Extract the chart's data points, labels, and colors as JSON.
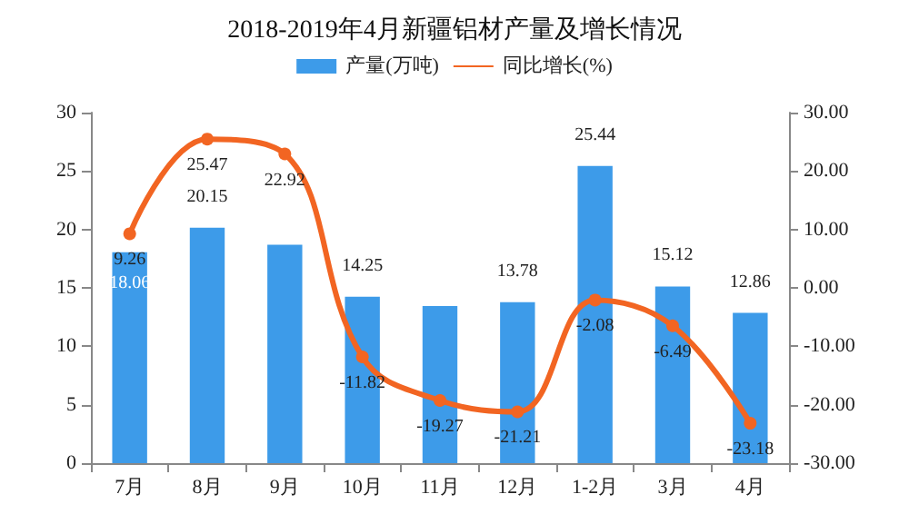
{
  "chart_data": {
    "type": "bar",
    "title": "2018-2019年4月新疆铝材产量及增长情况",
    "categories": [
      "7月",
      "8月",
      "9月",
      "10月",
      "11月",
      "12月",
      "1-2月",
      "3月",
      "4月"
    ],
    "series": [
      {
        "name": "产量(万吨)",
        "color": "#3d9be9",
        "values": [
          18.06,
          20.15,
          18.7,
          14.25,
          13.45,
          13.78,
          25.44,
          15.12,
          12.86
        ],
        "value_labels": [
          "18.06",
          "20.15",
          null,
          "14.25",
          null,
          "13.78",
          "25.44",
          "15.12",
          "12.86"
        ]
      },
      {
        "name": "同比增长(%)",
        "type": "line",
        "axis": "y2",
        "color": "#f26522",
        "marker": "circle",
        "values": [
          9.26,
          25.47,
          22.92,
          -11.82,
          -19.27,
          -21.21,
          -2.08,
          -6.49,
          -23.18
        ],
        "value_labels": [
          "9.26",
          "25.47",
          "22.92",
          "-11.82",
          "-19.27",
          "-21.21",
          "-2.08",
          "-6.49",
          "-23.18"
        ]
      }
    ],
    "ylim": [
      0,
      30
    ],
    "yticks": [
      0,
      5,
      10,
      15,
      20,
      25,
      30
    ],
    "y2lim": [
      -30,
      30
    ],
    "y2ticks": [
      {
        "value": -30,
        "label": "-30.00"
      },
      {
        "value": -20,
        "label": "-20.00"
      },
      {
        "value": -10,
        "label": "-10.00"
      },
      {
        "value": 0,
        "label": "0.00"
      },
      {
        "value": 10,
        "label": "10.00"
      },
      {
        "value": 20,
        "label": "20.00"
      },
      {
        "value": 30,
        "label": "30.00"
      }
    ],
    "grid": false,
    "legend": "top"
  }
}
